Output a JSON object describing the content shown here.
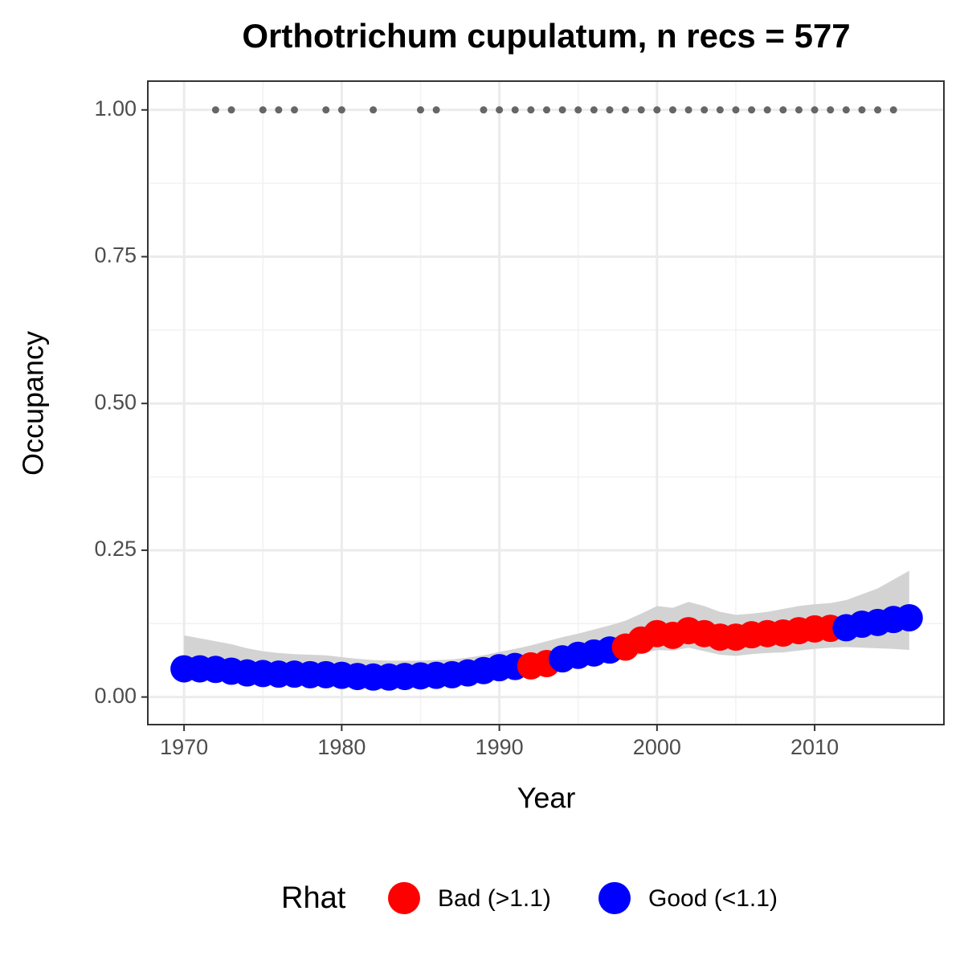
{
  "chart_data": {
    "type": "line",
    "title": "Orthotrichum cupulatum, n recs = 577",
    "x_label": "Year",
    "y_label": "Occupancy",
    "xlim": [
      1967.7,
      2018.2
    ],
    "ylim": [
      -0.047,
      1.049
    ],
    "xticks": [
      1970,
      1980,
      1990,
      2000,
      2010
    ],
    "yticks": [
      {
        "value": 0,
        "label": "0.00"
      },
      {
        "value": 0.25,
        "label": "0.25"
      },
      {
        "value": 0.5,
        "label": "0.50"
      },
      {
        "value": 0.75,
        "label": "0.75"
      },
      {
        "value": 1,
        "label": "1.00"
      }
    ],
    "grid": true,
    "legend": {
      "title": "Rhat",
      "items": [
        {
          "label": "Bad (>1.1)",
          "color": "#ff0000"
        },
        {
          "label": "Good (<1.1)",
          "color": "#0000ff"
        }
      ]
    },
    "x": [
      1970,
      1971,
      1972,
      1973,
      1974,
      1975,
      1976,
      1977,
      1978,
      1979,
      1980,
      1981,
      1982,
      1983,
      1984,
      1985,
      1986,
      1987,
      1988,
      1989,
      1990,
      1991,
      1992,
      1993,
      1994,
      1995,
      1996,
      1997,
      1998,
      1999,
      2000,
      2001,
      2002,
      2003,
      2004,
      2005,
      2006,
      2007,
      2008,
      2009,
      2010,
      2011,
      2012,
      2013,
      2014,
      2015,
      2016
    ],
    "series": [
      {
        "values": [
          0.048,
          0.048,
          0.047,
          0.044,
          0.041,
          0.04,
          0.039,
          0.039,
          0.038,
          0.038,
          0.037,
          0.035,
          0.034,
          0.034,
          0.035,
          0.036,
          0.037,
          0.038,
          0.041,
          0.045,
          0.05,
          0.052,
          0.053,
          0.057,
          0.065,
          0.071,
          0.075,
          0.08,
          0.085,
          0.097,
          0.108,
          0.105,
          0.113,
          0.108,
          0.102,
          0.102,
          0.106,
          0.108,
          0.109,
          0.113,
          0.116,
          0.117,
          0.118,
          0.124,
          0.127,
          0.132,
          0.135
        ],
        "group": [
          1,
          1,
          1,
          1,
          1,
          1,
          1,
          1,
          1,
          1,
          1,
          1,
          1,
          1,
          1,
          1,
          1,
          1,
          1,
          1,
          1,
          1,
          0,
          0,
          1,
          1,
          1,
          1,
          0,
          0,
          0,
          0,
          0,
          0,
          0,
          0,
          0,
          0,
          0,
          0,
          0,
          0,
          1,
          1,
          1,
          1,
          1
        ],
        "lower": [
          0.03,
          0.03,
          0.029,
          0.027,
          0.025,
          0.024,
          0.023,
          0.023,
          0.022,
          0.022,
          0.021,
          0.02,
          0.019,
          0.019,
          0.02,
          0.021,
          0.022,
          0.023,
          0.026,
          0.029,
          0.033,
          0.036,
          0.04,
          0.044,
          0.05,
          0.054,
          0.058,
          0.062,
          0.066,
          0.073,
          0.08,
          0.079,
          0.084,
          0.078,
          0.072,
          0.07,
          0.073,
          0.075,
          0.076,
          0.079,
          0.082,
          0.084,
          0.085,
          0.084,
          0.083,
          0.082,
          0.08
        ],
        "upper": [
          0.105,
          0.1,
          0.095,
          0.09,
          0.083,
          0.078,
          0.075,
          0.073,
          0.072,
          0.071,
          0.068,
          0.065,
          0.063,
          0.062,
          0.062,
          0.062,
          0.063,
          0.064,
          0.067,
          0.071,
          0.077,
          0.082,
          0.088,
          0.095,
          0.102,
          0.108,
          0.115,
          0.122,
          0.13,
          0.142,
          0.155,
          0.152,
          0.162,
          0.155,
          0.145,
          0.14,
          0.142,
          0.145,
          0.15,
          0.155,
          0.158,
          0.16,
          0.165,
          0.175,
          0.185,
          0.2,
          0.215
        ]
      }
    ],
    "records": {
      "color": "#666666",
      "x": [
        1972,
        1973,
        1975,
        1976,
        1977,
        1979,
        1980,
        1982,
        1985,
        1986,
        1989,
        1990,
        1991,
        1992,
        1993,
        1994,
        1995,
        1996,
        1997,
        1998,
        1999,
        2000,
        2001,
        2002,
        2003,
        2004,
        2005,
        2006,
        2007,
        2008,
        2009,
        2010,
        2011,
        2012,
        2013,
        2014,
        2015
      ],
      "values": [
        1,
        1,
        1,
        1,
        1,
        1,
        1,
        1,
        1,
        1,
        1,
        1,
        1,
        1,
        1,
        1,
        1,
        1,
        1,
        1,
        1,
        1,
        1,
        1,
        1,
        1,
        1,
        1,
        1,
        1,
        1,
        1,
        1,
        1,
        1,
        1,
        1
      ]
    }
  }
}
